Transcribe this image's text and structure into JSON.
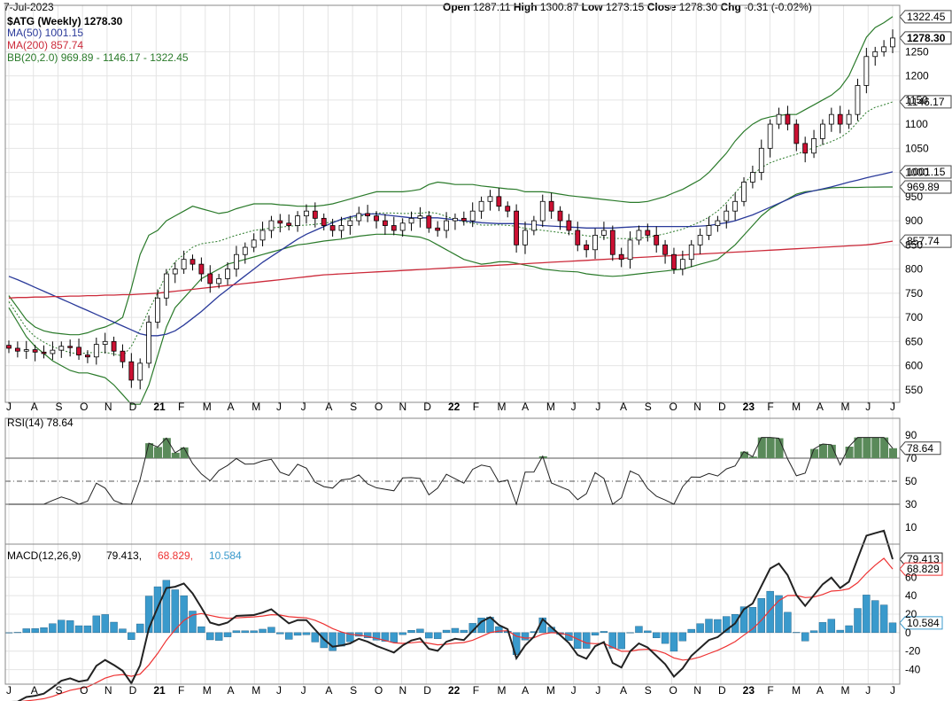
{
  "header": {
    "date": "7-Jul-2023",
    "open_label": "Open",
    "open": "1287.11",
    "high_label": "High",
    "high": "1300.87",
    "low_label": "Low",
    "low": "1273.15",
    "close_label": "Close",
    "close": "1278.30",
    "chg_label": "Chg",
    "chg": "-0.31 (-0.02%)"
  },
  "legend": {
    "symbol": "$ATG (Weekly) 1278.30",
    "ma50": "MA(50) 1001.15",
    "ma200": "MA(200) 857.74",
    "bb": "BB(20,2.0) 969.89 - 1146.17 - 1322.45",
    "rsi": "RSI(14) 78.64",
    "macd_name": "MACD(12,26,9)",
    "macd_val": "79.413,",
    "macd_sig": "68.829,",
    "macd_hist": "10.584"
  },
  "colors": {
    "up_body": "#ffffff",
    "down_body": "#cc1133",
    "candle_stroke": "#000000",
    "ma50": "#2a3a9a",
    "ma200": "#cc2a3a",
    "bb": "#2a7a2a",
    "bb_mid": "#2a7a2a",
    "rsi_line": "#222222",
    "rsi_fill": "#5a8a5a",
    "macd_line": "#222222",
    "signal_line": "#ee3333",
    "hist": "#3a9acc",
    "grid": "#e4e4e4",
    "axis_bg": "#ffffff"
  },
  "chart_data": {
    "type": "candlestick",
    "price_axis": {
      "ticks": [
        550,
        600,
        650,
        700,
        750,
        800,
        850,
        900,
        950,
        1000,
        1050,
        1100,
        1150,
        1200,
        1250
      ],
      "ylim": [
        535,
        1335
      ],
      "right_labels": [
        "1322.45",
        "1278.30",
        "1146.17",
        "1001.15",
        "969.89",
        "857.74"
      ]
    },
    "x_axis_labels": [
      "J",
      "A",
      "S",
      "O",
      "N",
      "D",
      "21",
      "F",
      "M",
      "A",
      "M",
      "J",
      "J",
      "A",
      "S",
      "O",
      "N",
      "D",
      "22",
      "F",
      "M",
      "A",
      "M",
      "J",
      "J",
      "A",
      "S",
      "O",
      "N",
      "D",
      "23",
      "F",
      "M",
      "A",
      "M",
      "J",
      "J"
    ],
    "close": [
      636,
      630,
      633,
      628,
      625,
      632,
      640,
      638,
      622,
      618,
      644,
      650,
      630,
      608,
      570,
      605,
      690,
      740,
      790,
      800,
      820,
      810,
      790,
      770,
      780,
      800,
      830,
      845,
      860,
      880,
      900,
      895,
      890,
      910,
      920,
      905,
      890,
      880,
      890,
      900,
      915,
      910,
      900,
      890,
      880,
      895,
      905,
      910,
      885,
      880,
      900,
      905,
      900,
      920,
      940,
      950,
      930,
      920,
      850,
      880,
      900,
      940,
      920,
      900,
      880,
      850,
      840,
      870,
      880,
      830,
      820,
      860,
      880,
      870,
      850,
      830,
      800,
      820,
      850,
      870,
      890,
      900,
      920,
      940,
      980,
      1000,
      1050,
      1100,
      1120,
      1100,
      1060,
      1040,
      1070,
      1100,
      1120,
      1100,
      1120,
      1180,
      1240,
      1250,
      1260,
      1278.3
    ],
    "ma50": [
      785,
      778,
      770,
      762,
      754,
      746,
      738,
      730,
      722,
      714,
      706,
      698,
      690,
      682,
      674,
      666,
      662,
      662,
      665,
      672,
      684,
      698,
      712,
      728,
      744,
      758,
      772,
      786,
      800,
      814,
      826,
      838,
      850,
      862,
      872,
      880,
      888,
      896,
      903,
      908,
      912,
      914,
      914,
      912,
      910,
      908,
      906,
      906,
      906,
      906,
      904,
      902,
      900,
      898,
      896,
      895,
      894,
      894,
      894,
      893,
      892,
      890,
      889,
      888,
      887,
      886,
      885,
      885,
      885,
      885,
      886,
      887,
      888,
      888,
      888,
      888,
      888,
      888,
      888,
      889,
      890,
      893,
      896,
      900,
      906,
      912,
      920,
      928,
      936,
      944,
      952,
      958,
      962,
      966,
      970,
      975,
      980,
      984,
      989,
      993,
      997,
      1001.15
    ],
    "ma200": [
      740,
      741,
      741,
      742,
      742,
      743,
      743,
      744,
      744,
      745,
      745,
      746,
      746,
      747,
      747,
      748,
      749,
      750,
      752,
      754,
      756,
      758,
      760,
      762,
      764,
      766,
      768,
      770,
      772,
      774,
      776,
      778,
      780,
      782,
      784,
      786,
      788,
      789,
      790,
      791,
      792,
      793,
      794,
      795,
      796,
      797,
      798,
      799,
      800,
      801,
      802,
      803,
      804,
      805,
      806,
      807,
      808,
      809,
      810,
      811,
      812,
      813,
      814,
      815,
      816,
      817,
      818,
      819,
      820,
      821,
      822,
      823,
      824,
      825,
      826,
      827,
      828,
      829,
      830,
      831,
      832,
      833,
      834,
      835,
      836,
      837,
      838,
      839,
      840,
      841,
      842,
      843,
      844,
      845,
      846,
      847,
      848,
      849,
      850,
      852,
      855,
      857.74
    ],
    "bb_upper": [
      745,
      720,
      695,
      680,
      672,
      668,
      666,
      664,
      664,
      668,
      675,
      680,
      688,
      700,
      760,
      830,
      870,
      880,
      900,
      910,
      920,
      930,
      925,
      920,
      915,
      918,
      925,
      930,
      935,
      935,
      935,
      933,
      932,
      930,
      930,
      930,
      932,
      935,
      940,
      945,
      950,
      955,
      960,
      960,
      960,
      960,
      962,
      965,
      975,
      980,
      978,
      975,
      975,
      975,
      972,
      970,
      968,
      966,
      965,
      960,
      960,
      960,
      958,
      955,
      952,
      950,
      948,
      946,
      944,
      942,
      940,
      938,
      938,
      940,
      945,
      950,
      958,
      965,
      975,
      985,
      1000,
      1020,
      1040,
      1065,
      1085,
      1100,
      1110,
      1115,
      1118,
      1120,
      1120,
      1130,
      1140,
      1150,
      1160,
      1175,
      1200,
      1240,
      1280,
      1300,
      1310,
      1322.45
    ],
    "bb_lower": [
      720,
      690,
      660,
      640,
      625,
      610,
      600,
      590,
      585,
      585,
      580,
      575,
      560,
      540,
      520,
      520,
      560,
      620,
      680,
      720,
      740,
      760,
      780,
      790,
      800,
      810,
      815,
      820,
      825,
      830,
      835,
      840,
      845,
      850,
      852,
      855,
      858,
      860,
      862,
      865,
      868,
      870,
      872,
      872,
      872,
      870,
      868,
      866,
      860,
      850,
      840,
      830,
      820,
      815,
      810,
      812,
      815,
      815,
      812,
      808,
      805,
      800,
      798,
      796,
      795,
      794,
      790,
      788,
      786,
      785,
      786,
      788,
      790,
      792,
      794,
      796,
      798,
      800,
      805,
      810,
      815,
      820,
      835,
      850,
      870,
      890,
      910,
      925,
      935,
      945,
      955,
      960,
      962,
      965,
      968,
      969,
      969,
      969,
      969.5,
      969.7,
      969.8,
      969.89
    ],
    "rsi": {
      "ticks": [
        10,
        30,
        50,
        70,
        90
      ],
      "value": 78.64,
      "lines": [
        30,
        50,
        70
      ]
    },
    "macd": {
      "ticks": [
        -40,
        -20,
        0,
        20,
        40,
        60
      ],
      "value": 79.413,
      "signal": 68.829,
      "hist": 10.584
    }
  }
}
